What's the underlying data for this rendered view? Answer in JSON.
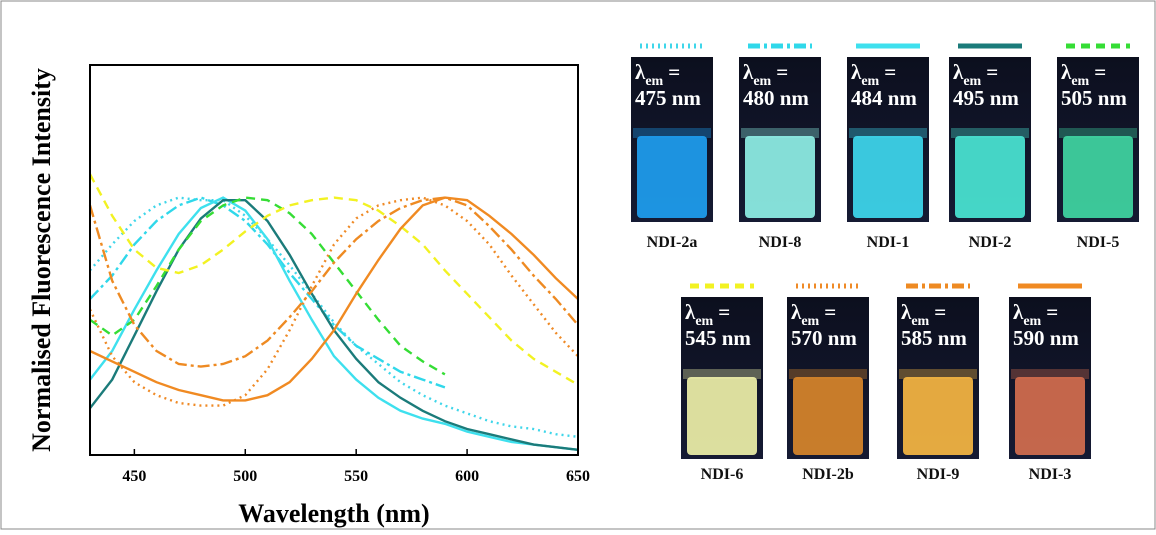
{
  "chart_data": {
    "type": "line",
    "x_label": "Wavelength (nm)",
    "y_label": "Normalised Fluorescence Intensity",
    "x": [
      430,
      440,
      450,
      460,
      470,
      480,
      490,
      500,
      510,
      520,
      530,
      540,
      550,
      560,
      570,
      580,
      590,
      600,
      610,
      620,
      630,
      640,
      650
    ],
    "xlim": [
      430,
      650
    ],
    "xticks": [
      450,
      500,
      550,
      600,
      650
    ],
    "ylim": [
      0,
      1.5
    ],
    "emission_symbol": "λ",
    "emission_subscript": "em",
    "emission_equals": "=",
    "series": [
      {
        "name": "NDI-2a",
        "emission": "475 nm",
        "color": "#3fd6ea",
        "dash": "dotted",
        "vial_color": "#1e9ef0",
        "values": [
          0.71,
          0.81,
          0.9,
          0.96,
          0.99,
          0.98,
          0.98,
          0.92,
          0.83,
          0.73,
          0.62,
          0.51,
          0.42,
          0.35,
          0.28,
          0.23,
          0.19,
          0.16,
          0.13,
          0.11,
          0.1,
          0.08,
          0.07
        ]
      },
      {
        "name": "NDI-8",
        "emission": "480 nm",
        "color": "#30d8ea",
        "dash": "dashdot",
        "vial_color": "#8ff0e6",
        "values": [
          0.6,
          0.69,
          0.81,
          0.9,
          0.96,
          0.99,
          0.96,
          0.9,
          0.81,
          0.7,
          0.6,
          0.5,
          0.42,
          0.37,
          0.32,
          0.29,
          0.26,
          null,
          null,
          null,
          null,
          null,
          null
        ]
      },
      {
        "name": "NDI-1",
        "emission": "484 nm",
        "color": "#3ee0ee",
        "dash": "solid",
        "vial_color": "#3ed8ee",
        "values": [
          0.29,
          0.4,
          0.56,
          0.71,
          0.85,
          0.95,
          0.99,
          0.94,
          0.83,
          0.67,
          0.52,
          0.38,
          0.29,
          0.22,
          0.17,
          0.14,
          0.12,
          0.09,
          0.07,
          0.05,
          0.04,
          0.03,
          0.02
        ]
      },
      {
        "name": "NDI-2",
        "emission": "495 nm",
        "color": "#1b7b7a",
        "dash": "solid",
        "vial_color": "#4ae6d4",
        "values": [
          0.18,
          0.29,
          0.46,
          0.63,
          0.79,
          0.91,
          0.98,
          0.98,
          0.9,
          0.77,
          0.62,
          0.48,
          0.37,
          0.28,
          0.22,
          0.17,
          0.13,
          0.1,
          0.08,
          0.06,
          0.04,
          0.03,
          0.02
        ]
      },
      {
        "name": "NDI-5",
        "emission": "505 nm",
        "color": "#35dd35",
        "dash": "dashed",
        "vial_color": "#40d6a2",
        "values": [
          0.52,
          0.46,
          0.52,
          0.65,
          0.79,
          0.9,
          0.96,
          0.99,
          0.98,
          0.93,
          0.85,
          0.74,
          0.63,
          0.52,
          0.42,
          0.36,
          0.31,
          null,
          null,
          null,
          null,
          null,
          null
        ]
      },
      {
        "name": "NDI-6",
        "emission": "545 nm",
        "color": "#f2f222",
        "dash": "dashed",
        "vial_color": "#eef0a8",
        "values": [
          1.08,
          0.92,
          0.79,
          0.72,
          0.7,
          0.73,
          0.79,
          0.86,
          0.92,
          0.96,
          0.98,
          0.99,
          0.98,
          0.94,
          0.88,
          0.81,
          0.71,
          0.62,
          0.53,
          0.44,
          0.37,
          0.32,
          0.27
        ]
      },
      {
        "name": "NDI-2b",
        "emission": "570 nm",
        "color": "#ef8a26",
        "dash": "dotted",
        "vial_color": "#d8862a",
        "values": [
          0.56,
          0.38,
          0.28,
          0.23,
          0.2,
          0.19,
          0.19,
          0.23,
          0.33,
          0.48,
          0.65,
          0.81,
          0.91,
          0.96,
          0.98,
          0.99,
          0.96,
          0.9,
          0.81,
          0.69,
          0.58,
          0.47,
          0.38
        ]
      },
      {
        "name": "NDI-9",
        "emission": "585 nm",
        "color": "#ee8a22",
        "dash": "dashdot",
        "vial_color": "#f6b642",
        "values": [
          0.96,
          0.67,
          0.5,
          0.4,
          0.35,
          0.34,
          0.35,
          0.38,
          0.44,
          0.53,
          0.63,
          0.74,
          0.83,
          0.9,
          0.95,
          0.98,
          0.99,
          0.96,
          0.88,
          0.79,
          0.69,
          0.6,
          0.5
        ]
      },
      {
        "name": "NDI-3",
        "emission": "590 nm",
        "color": "#f08a22",
        "dash": "solid",
        "vial_color": "#d46e4e",
        "values": [
          0.4,
          0.36,
          0.32,
          0.28,
          0.25,
          0.23,
          0.21,
          0.21,
          0.23,
          0.28,
          0.37,
          0.48,
          0.62,
          0.75,
          0.87,
          0.96,
          0.99,
          0.98,
          0.92,
          0.85,
          0.77,
          0.68,
          0.6
        ]
      }
    ]
  }
}
